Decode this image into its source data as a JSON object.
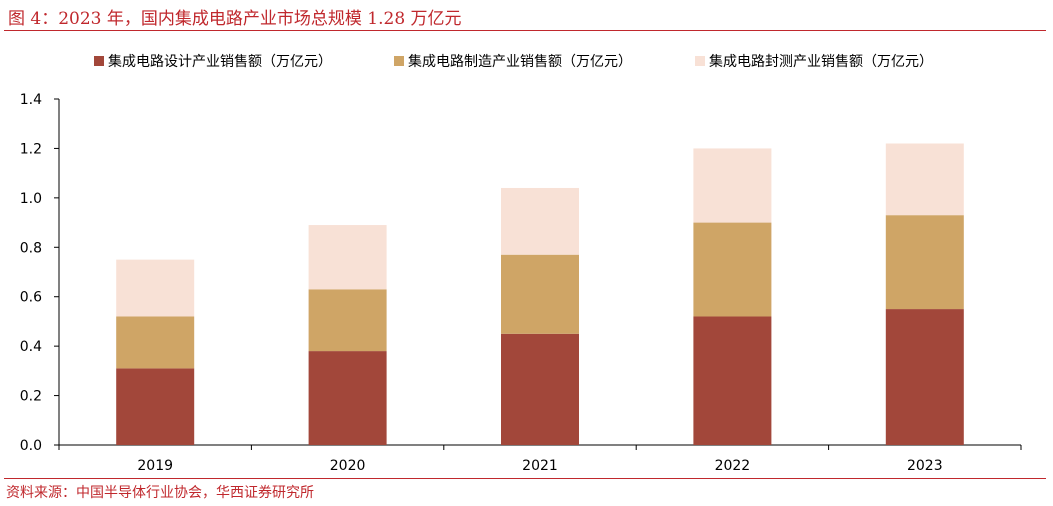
{
  "title": "图 4：2023 年，国内集成电路产业市场总规模 1.28 万亿元",
  "source": "资料来源：中国半导体行业协会，华西证券研究所",
  "colors": {
    "accent": "#c0282d",
    "design": "#a2473a",
    "manufacturing": "#cfa566",
    "packaging": "#f8e1d6"
  },
  "chart_data": {
    "type": "bar",
    "stacked": true,
    "categories": [
      "2019",
      "2020",
      "2021",
      "2022",
      "2023"
    ],
    "series": [
      {
        "name": "集成电路设计产业销售额（万亿元）",
        "values": [
          0.31,
          0.38,
          0.45,
          0.52,
          0.55
        ]
      },
      {
        "name": "集成电路制造产业销售额（万亿元）",
        "values": [
          0.21,
          0.25,
          0.32,
          0.38,
          0.38
        ]
      },
      {
        "name": "集成电路封测产业销售额（万亿元）",
        "values": [
          0.23,
          0.26,
          0.27,
          0.3,
          0.29
        ]
      }
    ],
    "ylim": [
      0,
      1.4
    ],
    "yticks": [
      "0.0",
      "0.2",
      "0.4",
      "0.6",
      "0.8",
      "1.0",
      "1.2",
      "1.4"
    ],
    "grid": false,
    "legend_position": "top"
  }
}
